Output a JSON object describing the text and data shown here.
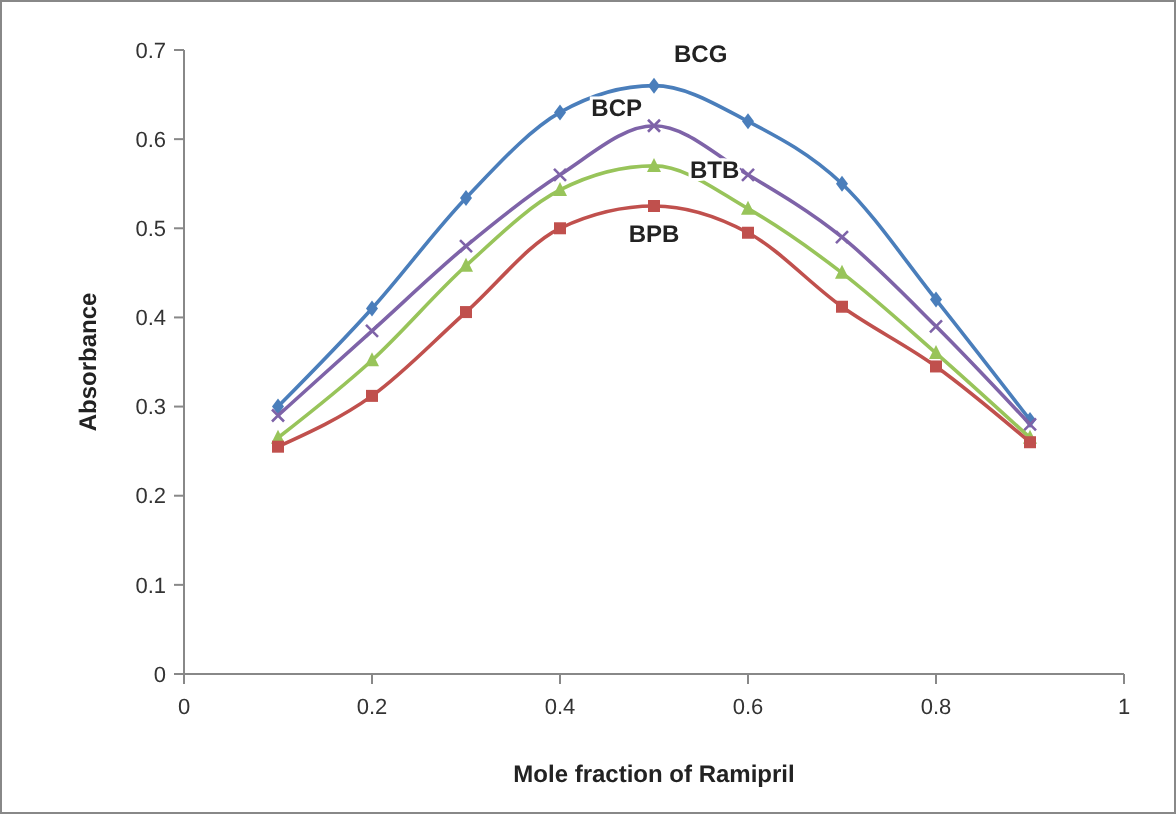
{
  "chart_data": {
    "type": "line",
    "xlabel": "Mole fraction of Ramipril",
    "ylabel": "Absorbance",
    "xlim": [
      0,
      1
    ],
    "xticks": [
      0,
      0.2,
      0.4,
      0.6,
      0.8,
      1
    ],
    "ylim": [
      0,
      0.7
    ],
    "yticks": [
      0,
      0.1,
      0.2,
      0.3,
      0.4,
      0.5,
      0.6,
      0.7
    ],
    "x": [
      0.1,
      0.2,
      0.3,
      0.4,
      0.5,
      0.6,
      0.7,
      0.8,
      0.9
    ],
    "series": [
      {
        "name": "BCG",
        "color": "#4a7ebb",
        "marker": "diamond",
        "values": [
          0.3,
          0.41,
          0.534,
          0.63,
          0.66,
          0.62,
          0.55,
          0.42,
          0.285
        ]
      },
      {
        "name": "BCP",
        "color": "#7e63a8",
        "marker": "cross",
        "values": [
          0.29,
          0.385,
          0.48,
          0.56,
          0.615,
          0.56,
          0.49,
          0.39,
          0.28
        ]
      },
      {
        "name": "BTB",
        "color": "#98c45a",
        "marker": "triangle",
        "values": [
          0.265,
          0.352,
          0.458,
          0.543,
          0.57,
          0.522,
          0.45,
          0.36,
          0.265
        ]
      },
      {
        "name": "BPB",
        "color": "#c0504d",
        "marker": "square",
        "values": [
          0.255,
          0.312,
          0.406,
          0.5,
          0.525,
          0.495,
          0.412,
          0.345,
          0.26
        ]
      }
    ]
  }
}
